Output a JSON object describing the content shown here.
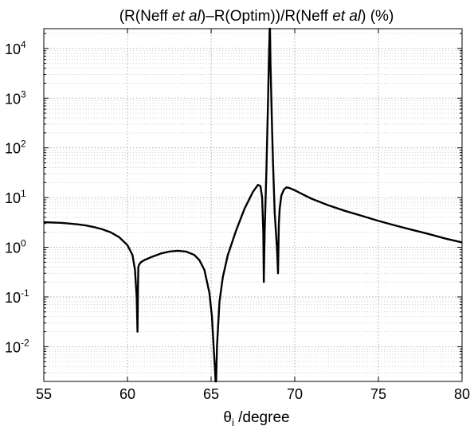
{
  "chart_data": {
    "type": "line",
    "title_parts": [
      {
        "text": "(R(Neff ",
        "style": "normal"
      },
      {
        "text": "et al",
        "style": "italic"
      },
      {
        "text": ")–R(Optim))/R(Neff ",
        "style": "normal"
      },
      {
        "text": "et al",
        "style": "italic"
      },
      {
        "text": ") (%)",
        "style": "normal"
      }
    ],
    "xlabel_symbol": "θ",
    "xlabel_subscript": "i",
    "xlabel_rest": " /degree",
    "ylabel": "",
    "xlim": [
      55,
      80
    ],
    "ylim": [
      0.002,
      25000
    ],
    "yscale": "log",
    "grid": true,
    "x_ticks": [
      {
        "value": 55,
        "label": "55"
      },
      {
        "value": 60,
        "label": "60"
      },
      {
        "value": 65,
        "label": "65"
      },
      {
        "value": 70,
        "label": "70"
      },
      {
        "value": 75,
        "label": "75"
      },
      {
        "value": 80,
        "label": "80"
      }
    ],
    "y_ticks": [
      {
        "value": 0.01,
        "base": "10",
        "exp": "-2"
      },
      {
        "value": 0.1,
        "base": "10",
        "exp": "-1"
      },
      {
        "value": 1,
        "base": "10",
        "exp": "0"
      },
      {
        "value": 10,
        "base": "10",
        "exp": "1"
      },
      {
        "value": 100,
        "base": "10",
        "exp": "2"
      },
      {
        "value": 1000,
        "base": "10",
        "exp": "3"
      },
      {
        "value": 10000,
        "base": "10",
        "exp": "4"
      }
    ],
    "series": [
      {
        "color": "#000000",
        "x": [
          55,
          55.5,
          56,
          56.5,
          57,
          57.5,
          58,
          58.5,
          59,
          59.5,
          60,
          60.3,
          60.45,
          60.55,
          60.6,
          60.62,
          60.65,
          60.7,
          60.8,
          61,
          61.5,
          62,
          62.5,
          63,
          63.5,
          64,
          64.3,
          64.6,
          64.9,
          65.05,
          65.15,
          65.22,
          65.27,
          65.3,
          65.35,
          65.5,
          65.7,
          66,
          66.5,
          67,
          67.5,
          67.8,
          67.95,
          68.05,
          68.12,
          68.15,
          68.2,
          68.3,
          68.4,
          68.45,
          68.5,
          68.52,
          68.55,
          68.6,
          68.65,
          68.7,
          68.8,
          68.9,
          68.95,
          69,
          69.05,
          69.1,
          69.2,
          69.35,
          69.5,
          69.7,
          70,
          70.5,
          71,
          72,
          73,
          74,
          75,
          76,
          77,
          78,
          79,
          80
        ],
        "values": [
          3.2,
          3.15,
          3.1,
          3.0,
          2.9,
          2.75,
          2.55,
          2.3,
          2.0,
          1.6,
          1.1,
          0.7,
          0.35,
          0.1,
          0.02,
          0.1,
          0.4,
          0.45,
          0.5,
          0.55,
          0.65,
          0.75,
          0.82,
          0.85,
          0.82,
          0.7,
          0.55,
          0.35,
          0.12,
          0.04,
          0.01,
          0.004,
          0.002,
          0.002,
          0.01,
          0.08,
          0.25,
          0.7,
          2.2,
          6.0,
          13.0,
          18.0,
          17.0,
          10.0,
          2.0,
          0.2,
          2.0,
          30.0,
          800.0,
          5000.0,
          25000.0,
          25000.0,
          5000.0,
          1000.0,
          200.0,
          50.0,
          5.0,
          1.5,
          0.8,
          0.3,
          3.0,
          6.0,
          11.0,
          14.5,
          16.0,
          15.5,
          14.0,
          11.5,
          9.5,
          7.0,
          5.4,
          4.3,
          3.4,
          2.75,
          2.25,
          1.85,
          1.5,
          1.25
        ]
      }
    ]
  }
}
